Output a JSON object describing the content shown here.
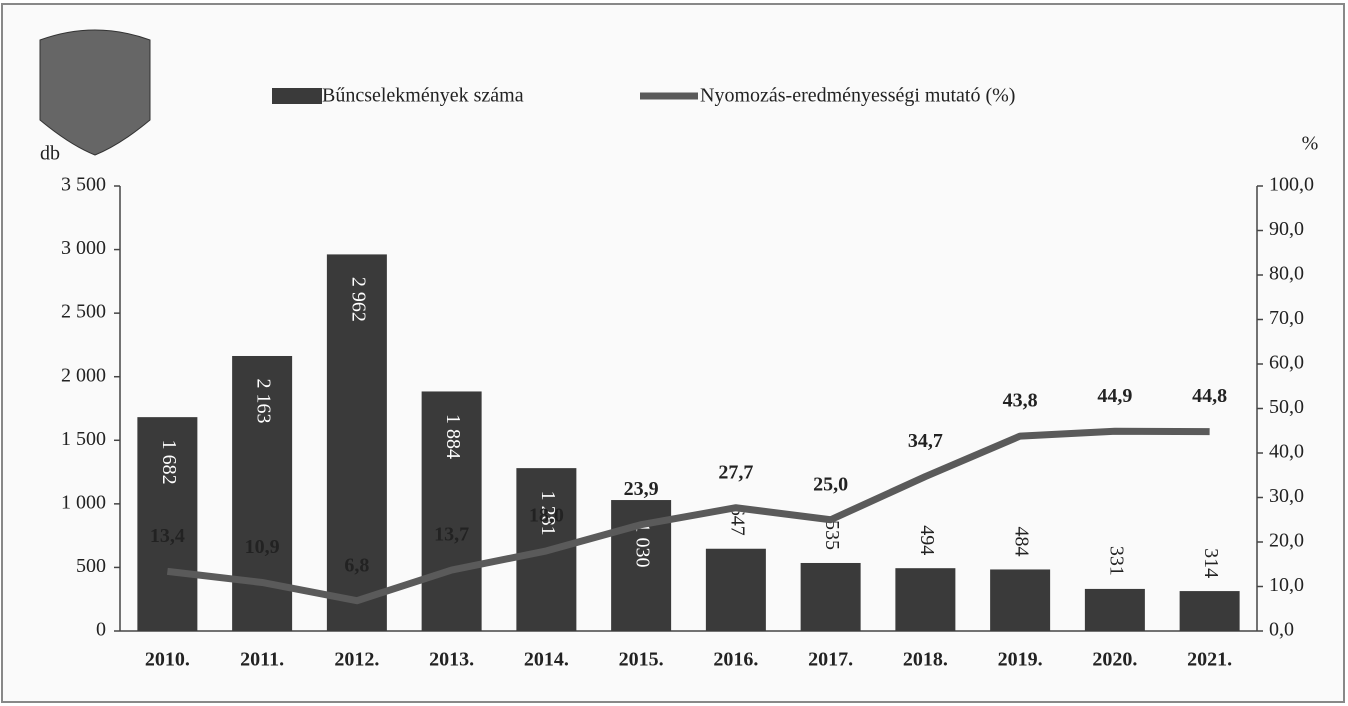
{
  "chart_data": {
    "type": "bar-line",
    "ylabel": "db",
    "y2label": "%",
    "categories": [
      "2010.",
      "2011.",
      "2012.",
      "2013.",
      "2014.",
      "2015.",
      "2016.",
      "2017.",
      "2018.",
      "2019.",
      "2020.",
      "2021."
    ],
    "series": [
      {
        "name": "Bűncselekmények száma",
        "type": "bar",
        "color": "#3a3a3a",
        "values": [
          1682,
          2163,
          2962,
          1884,
          1281,
          1030,
          647,
          535,
          494,
          484,
          331,
          314
        ],
        "value_labels": [
          "1 682",
          "2 163",
          "2 962",
          "1 884",
          "1 281",
          "1 030",
          "647",
          "535",
          "494",
          "484",
          "331",
          "314"
        ]
      },
      {
        "name": "Nyomozás-eredményességi mutató (%)",
        "type": "line",
        "axis": "y2",
        "color": "#5a5a5a",
        "values": [
          13.4,
          10.9,
          6.8,
          13.7,
          18.0,
          23.9,
          27.7,
          25.0,
          34.7,
          43.8,
          44.9,
          44.8
        ],
        "value_labels": [
          "13,4",
          "10,9",
          "6,8",
          "13,7",
          "18,0",
          "23,9",
          "27,7",
          "25,0",
          "34,7",
          "43,8",
          "44,9",
          "44,8"
        ]
      }
    ],
    "ylim": [
      0,
      3500
    ],
    "yticks": [
      0,
      500,
      {
        "value": 1000,
        "label": "1 000"
      },
      {
        "value": 1500,
        "label": "1 500"
      },
      {
        "value": 2000,
        "label": "2 000"
      },
      {
        "value": 2500,
        "label": "2 500"
      },
      {
        "value": 3000,
        "label": "3 000"
      },
      {
        "value": 3500,
        "label": "3 500"
      }
    ],
    "y2lim": [
      0,
      100
    ],
    "y2ticks": [
      {
        "value": 0,
        "label": "0,0"
      },
      {
        "value": 10,
        "label": "10,0"
      },
      {
        "value": 20,
        "label": "20,0"
      },
      {
        "value": 30,
        "label": "30,0"
      },
      {
        "value": 40,
        "label": "40,0"
      },
      {
        "value": 50,
        "label": "50,0"
      },
      {
        "value": 60,
        "label": "60,0"
      },
      {
        "value": 70,
        "label": "70,0"
      },
      {
        "value": 80,
        "label": "80,0"
      },
      {
        "value": 90,
        "label": "90,0"
      },
      {
        "value": 100,
        "label": "100,0"
      }
    ],
    "legend": "top"
  }
}
